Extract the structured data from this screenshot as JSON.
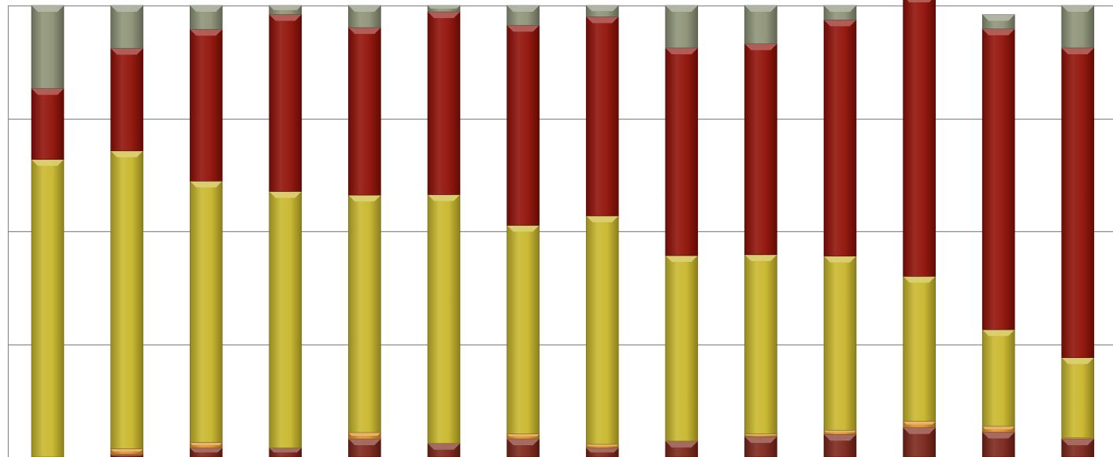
{
  "chart_data": {
    "type": "bar",
    "stacked": true,
    "percent": true,
    "title": "",
    "xlabel": "",
    "ylabel": "",
    "ylim": [
      0,
      100
    ],
    "yticks": [
      0,
      25,
      50,
      75,
      100
    ],
    "grid": true,
    "categories": [
      "",
      "",
      "",
      "",
      "",
      "",
      "",
      "",
      "",
      "",
      "",
      "",
      "",
      ""
    ],
    "series": [
      {
        "color": "#7a2418",
        "values": [
          0,
          0.6,
          2.0,
          2.0,
          4.0,
          3.0,
          4.0,
          2.0,
          3.5,
          4.5,
          5.0,
          6.5,
          5.5,
          4.0
        ]
      },
      {
        "color": "#e0902a",
        "values": [
          0,
          1.2,
          1.2,
          0.0,
          1.4,
          0.0,
          1.1,
          0.8,
          0.0,
          0.6,
          0.9,
          1.4,
          1.3,
          0.3
        ]
      },
      {
        "color": "#c8b62a",
        "values": [
          65.9,
          66.0,
          57.9,
          56.8,
          52.6,
          55.1,
          46.2,
          50.6,
          41.1,
          39.7,
          38.6,
          32.1,
          21.4,
          17.7
        ]
      },
      {
        "color": "#8e0f06",
        "values": [
          15.7,
          22.7,
          33.6,
          39.2,
          37.1,
          40.5,
          44.3,
          44.1,
          46.0,
          46.7,
          52.3,
          62.1,
          66.6,
          68.6
        ]
      },
      {
        "color": "#8c9276",
        "values": [
          18.4,
          9.5,
          5.3,
          2.0,
          4.9,
          1.4,
          4.4,
          2.5,
          9.4,
          8.5,
          3.2,
          3.0,
          3.2,
          9.4
        ]
      }
    ]
  }
}
